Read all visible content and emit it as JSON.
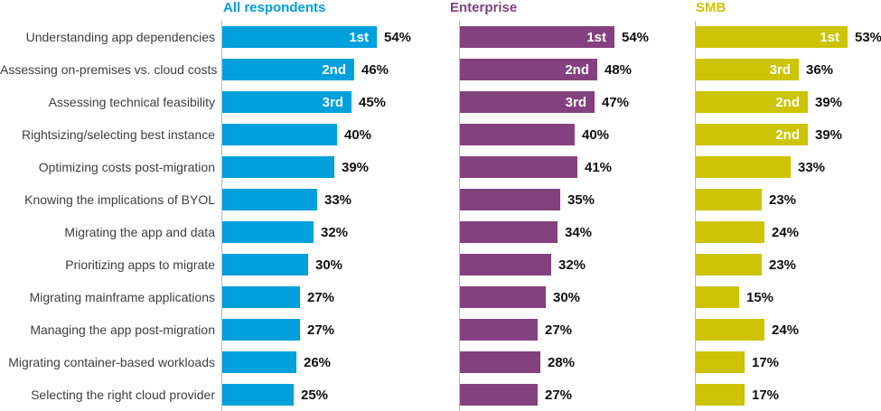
{
  "chart_data": {
    "type": "bar",
    "orientation": "horizontal",
    "title": "",
    "value_suffix": "%",
    "xlim": [
      0,
      60
    ],
    "grid": false,
    "legend_position": "column-headers-top",
    "axis_color": "#b9b9b9",
    "categories": [
      "Understanding app dependencies",
      "Assessing on-premises vs. cloud costs",
      "Assessing technical feasibility",
      "Rightsizing/selecting best instance",
      "Optimizing costs post-migration",
      "Knowing the implications of BYOL",
      "Migrating the app and data",
      "Prioritizing apps to migrate",
      "Migrating mainframe applications",
      "Managing the app post-migration",
      "Migrating container-based workloads",
      "Selecting the right cloud provider"
    ],
    "series": [
      {
        "name": "All respondents",
        "color": "#00a0dd",
        "values": [
          54,
          46,
          45,
          40,
          39,
          33,
          32,
          30,
          27,
          27,
          26,
          25
        ],
        "ranks": [
          "1st",
          "2nd",
          "3rd",
          "",
          "",
          "",
          "",
          "",
          "",
          "",
          "",
          ""
        ]
      },
      {
        "name": "Enterprise",
        "color": "#84417f",
        "values": [
          54,
          48,
          47,
          40,
          41,
          35,
          34,
          32,
          30,
          27,
          28,
          27
        ],
        "ranks": [
          "1st",
          "2nd",
          "3rd",
          "",
          "",
          "",
          "",
          "",
          "",
          "",
          "",
          ""
        ]
      },
      {
        "name": "SMB",
        "color": "#ccc405",
        "values": [
          53,
          36,
          39,
          39,
          33,
          23,
          24,
          23,
          15,
          24,
          17,
          17
        ],
        "ranks": [
          "1st",
          "3rd",
          "2nd",
          "2nd",
          "",
          "",
          "",
          "",
          "",
          "",
          "",
          ""
        ]
      }
    ]
  }
}
